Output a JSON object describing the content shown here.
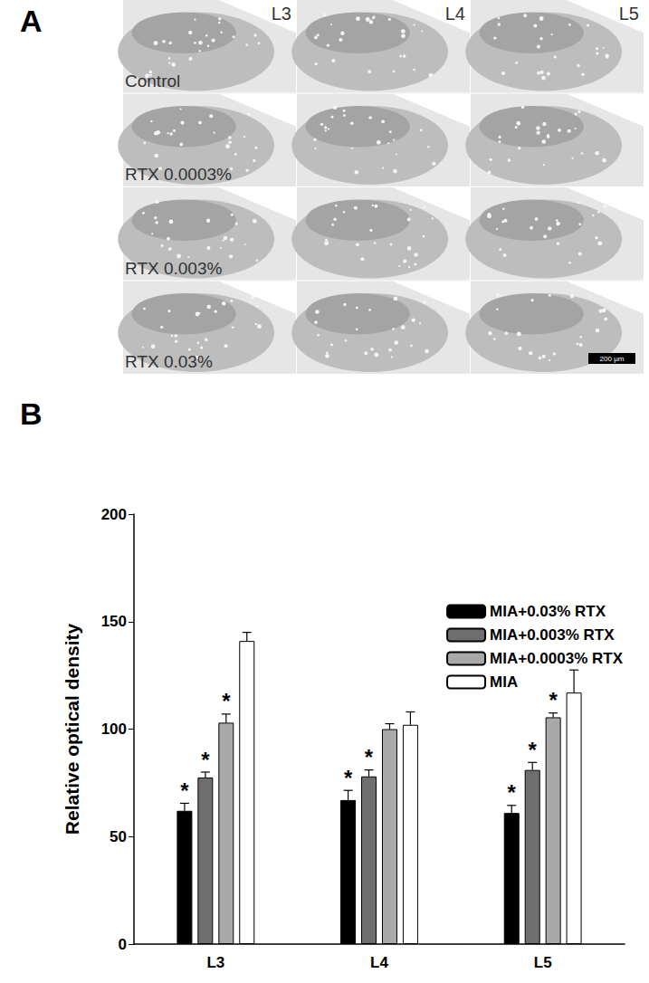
{
  "chart_data": {
    "type": "bar",
    "panel_label": "B",
    "y_label": "Relative optical density",
    "categories": [
      "L3",
      "L4",
      "L5"
    ],
    "ylim": [
      0,
      200
    ],
    "yticks": [
      0,
      50,
      100,
      150,
      200
    ],
    "grid": false,
    "legend": "top-right",
    "series": [
      {
        "name": "MIA+0.03% RTX",
        "color": "#000000",
        "values": [
          62,
          67,
          61
        ],
        "errors": [
          3.5,
          4.5,
          3.5
        ],
        "significance": [
          "*",
          "*",
          "*"
        ]
      },
      {
        "name": "MIA+0.003% RTX",
        "color": "#6e6e6e",
        "values": [
          77.5,
          78,
          81
        ],
        "errors": [
          2.5,
          3,
          3.5
        ],
        "significance": [
          "*",
          "*",
          "*"
        ]
      },
      {
        "name": "MIA+0.0003% RTX",
        "color": "#a9a9a9",
        "values": [
          103,
          100,
          105.5
        ],
        "errors": [
          4,
          2.5,
          2
        ],
        "significance": [
          "*",
          null,
          "*"
        ]
      },
      {
        "name": "MIA",
        "color": "#ffffff",
        "values": [
          141,
          102,
          117
        ],
        "errors": [
          4,
          6,
          10.5
        ],
        "significance": [
          null,
          null,
          null
        ]
      }
    ]
  },
  "image_panel": {
    "panel_label": "A",
    "columns": [
      "L3",
      "L4",
      "L5"
    ],
    "rows": [
      "Control",
      "RTX 0.0003%",
      "RTX 0.003%",
      "RTX 0.03%"
    ],
    "scale_bar": "200 μm"
  }
}
